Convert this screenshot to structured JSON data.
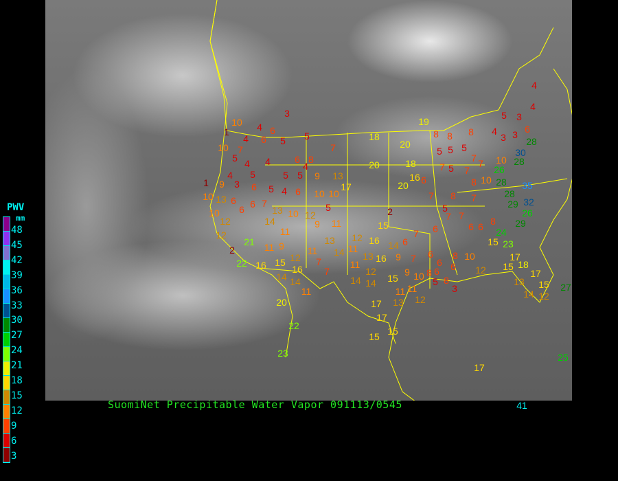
{
  "caption": "SuomiNet Precipitable Water Vapor 091113/0545",
  "legend": {
    "title": "PWV",
    "unit": "mm",
    "labels": [
      "48",
      "45",
      "42",
      "39",
      "36",
      "33",
      "30",
      "27",
      "24",
      "21",
      "18",
      "15",
      "12",
      "9",
      "6",
      "3"
    ],
    "colors": [
      "#8b008b",
      "#9030f0",
      "#8070d0",
      "#00f0f0",
      "#00b8e8",
      "#1890ff",
      "#005090",
      "#008800",
      "#00d000",
      "#80ff00",
      "#f0f000",
      "#ffd800",
      "#d08800",
      "#ff8000",
      "#ff4000",
      "#dd0000",
      "#900000"
    ]
  },
  "map": {
    "background": "GOES infrared satellite image",
    "boundary_color": "#ffff00"
  },
  "stations": [
    3,
    10,
    4,
    6,
    1,
    5,
    4,
    6,
    5,
    10,
    7,
    7,
    5,
    4,
    6,
    8,
    4,
    4,
    5,
    5,
    5,
    9,
    13,
    4,
    1,
    9,
    3,
    6,
    5,
    4,
    6,
    10,
    10,
    17,
    10,
    13,
    6,
    6,
    7,
    13,
    10,
    12,
    5,
    9,
    11,
    10,
    12,
    12,
    14,
    11,
    21,
    2,
    22,
    16,
    11,
    9,
    15,
    12,
    11,
    13,
    14,
    16,
    7,
    14,
    7,
    18,
    20,
    20,
    18,
    19,
    20,
    16,
    6,
    2,
    15,
    12,
    16,
    14,
    6,
    7,
    6,
    14,
    11,
    13,
    16,
    9,
    7,
    6,
    11,
    12,
    14,
    14,
    15,
    9,
    10,
    8,
    6,
    8,
    6,
    10,
    8,
    3,
    12,
    11,
    11,
    13,
    17,
    17,
    15,
    15,
    8,
    8,
    8,
    5,
    5,
    5,
    7,
    4,
    3,
    3,
    6,
    3,
    5,
    4,
    4,
    7,
    5,
    7,
    7,
    10,
    26,
    28,
    28,
    30,
    28,
    28,
    35,
    32,
    29,
    26,
    29,
    24,
    23,
    15,
    8,
    6,
    6,
    7,
    7,
    7,
    8,
    5,
    8,
    10,
    7,
    17,
    15,
    18,
    17,
    13,
    15,
    14,
    12,
    5,
    6,
    12,
    20,
    22,
    23,
    17,
    41,
    25,
    27,
    6,
    11
  ]
}
